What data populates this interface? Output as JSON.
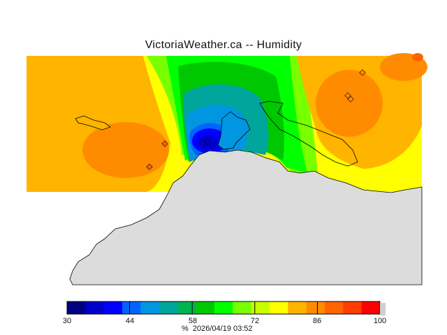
{
  "header": {
    "title": "VictoriaWeather.ca -- Humidity"
  },
  "colorbar": {
    "ticks": [
      "30",
      "44",
      "58",
      "72",
      "86",
      "100"
    ],
    "unit": "%",
    "timestamp": "2026/04/19 03:52",
    "colors": [
      "#000080",
      "#0000cd",
      "#0000ff",
      "#0064ff",
      "#0096e0",
      "#00a59b",
      "#00b250",
      "#00c800",
      "#00ff00",
      "#78ff00",
      "#c8ff00",
      "#ffff00",
      "#ffb400",
      "#ff8c00",
      "#ff6400",
      "#ff3c00",
      "#ff0000"
    ]
  },
  "map": {
    "colors": {
      "land": "#dcdcdc",
      "coast": "#000000",
      "marker": "#ff6400"
    }
  }
}
